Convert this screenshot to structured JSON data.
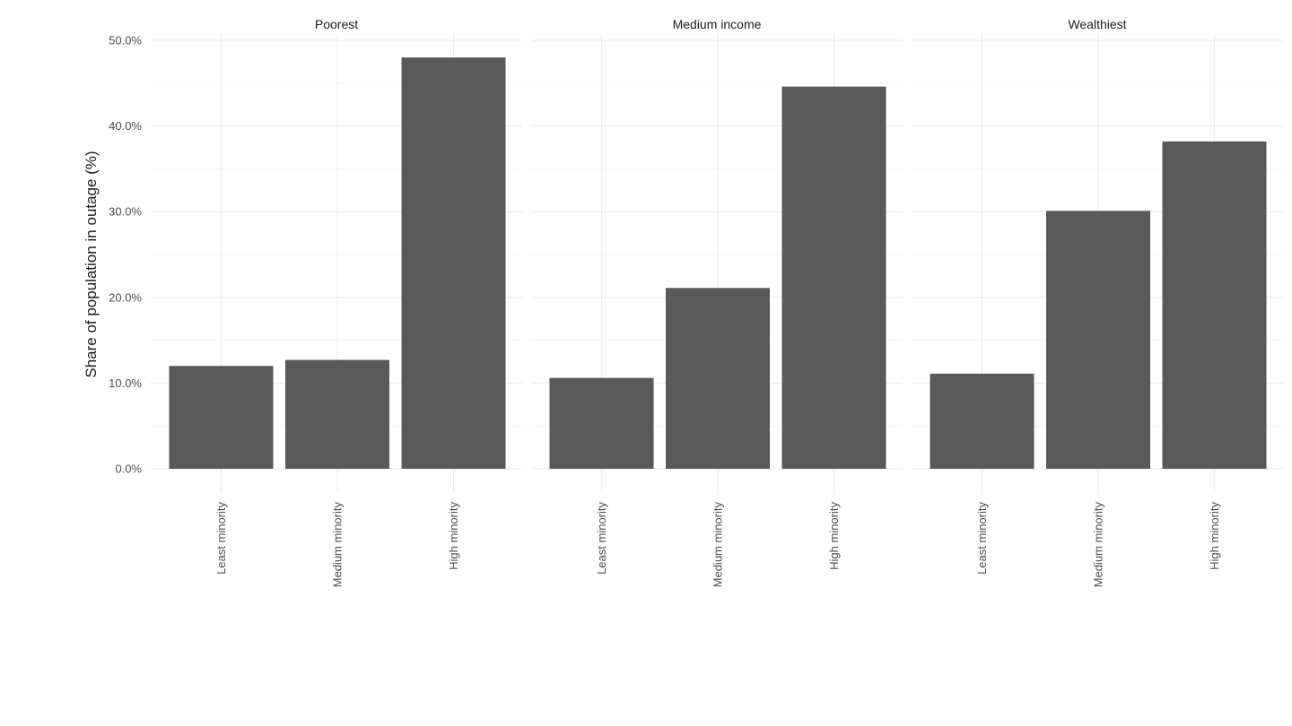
{
  "chart_data": {
    "type": "bar",
    "ylabel": "Share of population in outage (%)",
    "xlabel": "",
    "ylim": [
      0,
      50
    ],
    "yticks": [
      "0.0%",
      "10.0%",
      "20.0%",
      "30.0%",
      "40.0%",
      "50.0%"
    ],
    "grid": true,
    "bar_color": "#595959",
    "categories": [
      "Least minority",
      "Medium minority",
      "High minority"
    ],
    "facets": [
      {
        "name": "Poorest",
        "values": [
          12.0,
          12.7,
          48.0
        ]
      },
      {
        "name": "Medium income",
        "values": [
          10.6,
          21.1,
          44.6
        ]
      },
      {
        "name": "Wealthiest",
        "values": [
          11.1,
          30.1,
          38.2
        ]
      }
    ]
  }
}
